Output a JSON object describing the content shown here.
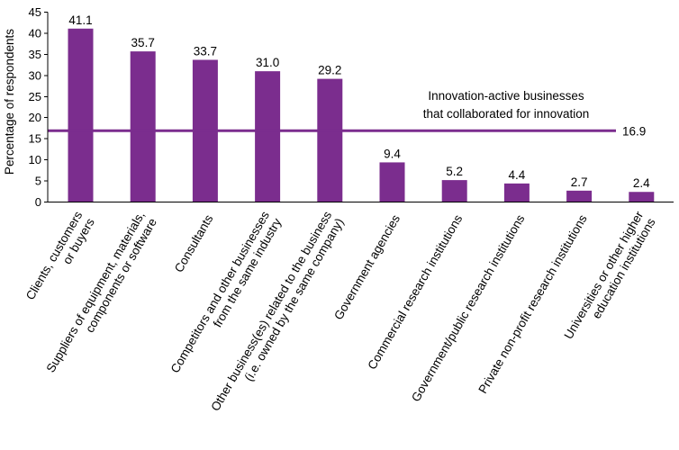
{
  "chart_data": {
    "type": "bar",
    "ylabel": "Percentage of respondents",
    "xlabel": "",
    "ylim": [
      0,
      45
    ],
    "yticks": [
      0,
      5,
      10,
      15,
      20,
      25,
      30,
      35,
      40,
      45
    ],
    "bar_color": "#7b2d8e",
    "categories": [
      [
        "Clients, customers",
        "or buyers"
      ],
      [
        "Suppliers of equipment, materials,",
        "components or software"
      ],
      [
        "Consultants"
      ],
      [
        "Competitors and other businesses",
        "from the same industry"
      ],
      [
        "Other business(es) related to the business",
        "(i.e. owned by the same company)"
      ],
      [
        "Government agencies"
      ],
      [
        "Commercial research institutions"
      ],
      [
        "Government/public research institutions"
      ],
      [
        "Private non-profit research institutions"
      ],
      [
        "Universities or other higher",
        "education institutions"
      ]
    ],
    "values": [
      41.1,
      35.7,
      33.7,
      31.0,
      29.2,
      9.4,
      5.2,
      4.4,
      2.7,
      2.4
    ],
    "value_labels": [
      "41.1",
      "35.7",
      "33.7",
      "31.0",
      "29.2",
      "9.4",
      "5.2",
      "4.4",
      "2.7",
      "2.4"
    ],
    "reference_line": {
      "value": 16.9,
      "label": "16.9",
      "annotation": [
        "Innovation-active businesses",
        "that collaborated for innovation"
      ],
      "color": "#7b2d8e"
    }
  }
}
